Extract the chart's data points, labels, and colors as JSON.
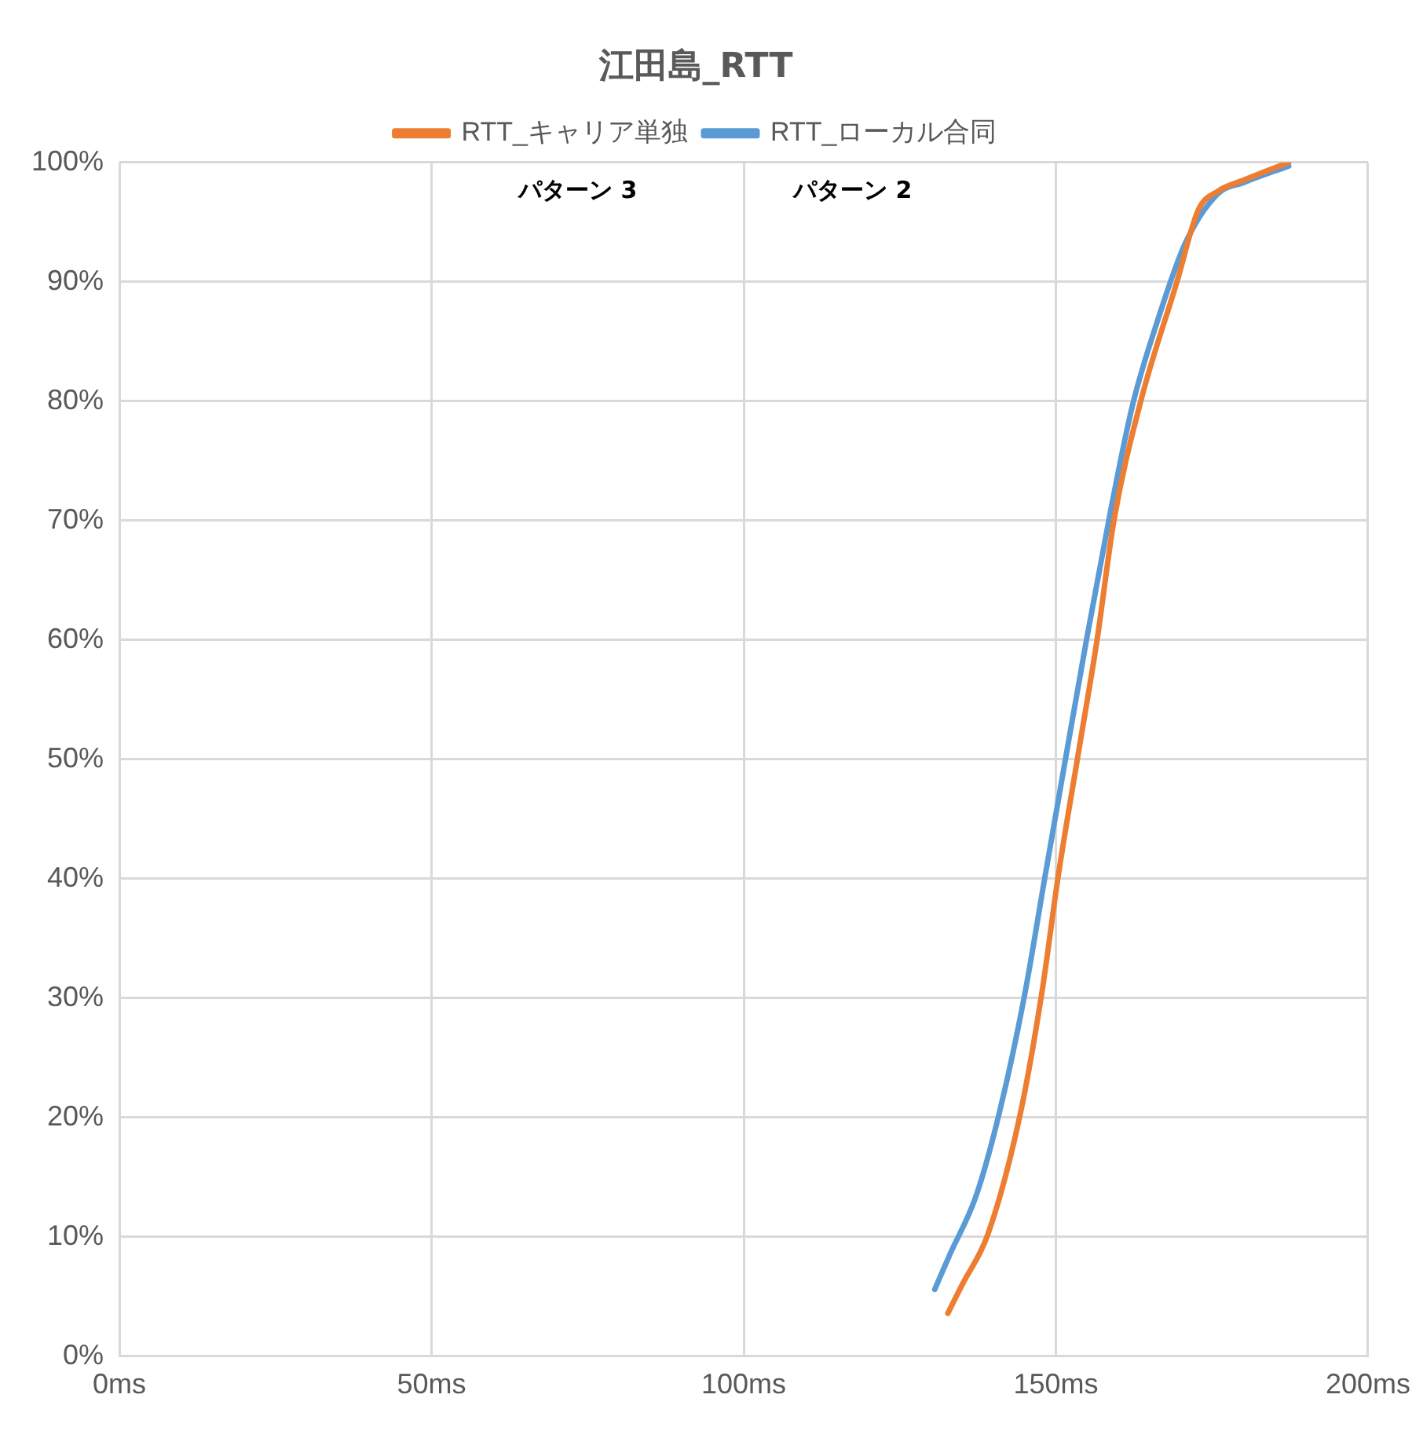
{
  "chart_data": {
    "type": "line",
    "title": "江田島_RTT",
    "annotations": [
      "パターン 3",
      "パターン 2"
    ],
    "legend": "top",
    "grid": true,
    "marker": "none",
    "line_style": "solid",
    "xlim": [
      0,
      200
    ],
    "xticks": [
      {
        "value": 0,
        "label": "0ms"
      },
      {
        "value": 50,
        "label": "50ms"
      },
      {
        "value": 100,
        "label": "100ms"
      },
      {
        "value": 150,
        "label": "150ms"
      },
      {
        "value": 200,
        "label": "200ms"
      }
    ],
    "ylim": [
      0,
      100
    ],
    "yticks": [
      {
        "value": 0,
        "label": "0%"
      },
      {
        "value": 10,
        "label": "10%"
      },
      {
        "value": 20,
        "label": "20%"
      },
      {
        "value": 30,
        "label": "30%"
      },
      {
        "value": 40,
        "label": "40%"
      },
      {
        "value": 50,
        "label": "50%"
      },
      {
        "value": 60,
        "label": "60%"
      },
      {
        "value": 70,
        "label": "70%"
      },
      {
        "value": 80,
        "label": "80%"
      },
      {
        "value": 90,
        "label": "90%"
      },
      {
        "value": 100,
        "label": "100%"
      }
    ],
    "series": [
      {
        "name": "RTT_キャリア単独",
        "color": "#ed7d31",
        "x": [
          132.7,
          135,
          139.1,
          144.3,
          147.8,
          150.4,
          153.6,
          156.6,
          159.3,
          163.6,
          169.4,
          172.8,
          176,
          180,
          187.3
        ],
        "values": [
          3.6,
          6,
          10.2,
          20.3,
          30.6,
          40.3,
          50.5,
          60,
          70,
          80,
          90,
          96,
          97.6,
          98.5,
          100
        ]
      },
      {
        "name": "RTT_ローカル合同",
        "color": "#5b9bd5",
        "x": [
          130.6,
          133,
          137.2,
          140.9,
          144.9,
          148.3,
          151.7,
          154.9,
          158.8,
          162.3,
          166.2,
          170.7,
          176,
          180,
          187.3
        ],
        "values": [
          5.6,
          8.5,
          13.4,
          20.3,
          30,
          40.3,
          50.5,
          60,
          70.9,
          79.7,
          86.6,
          93.2,
          97.4,
          98.3,
          99.7
        ]
      }
    ]
  }
}
